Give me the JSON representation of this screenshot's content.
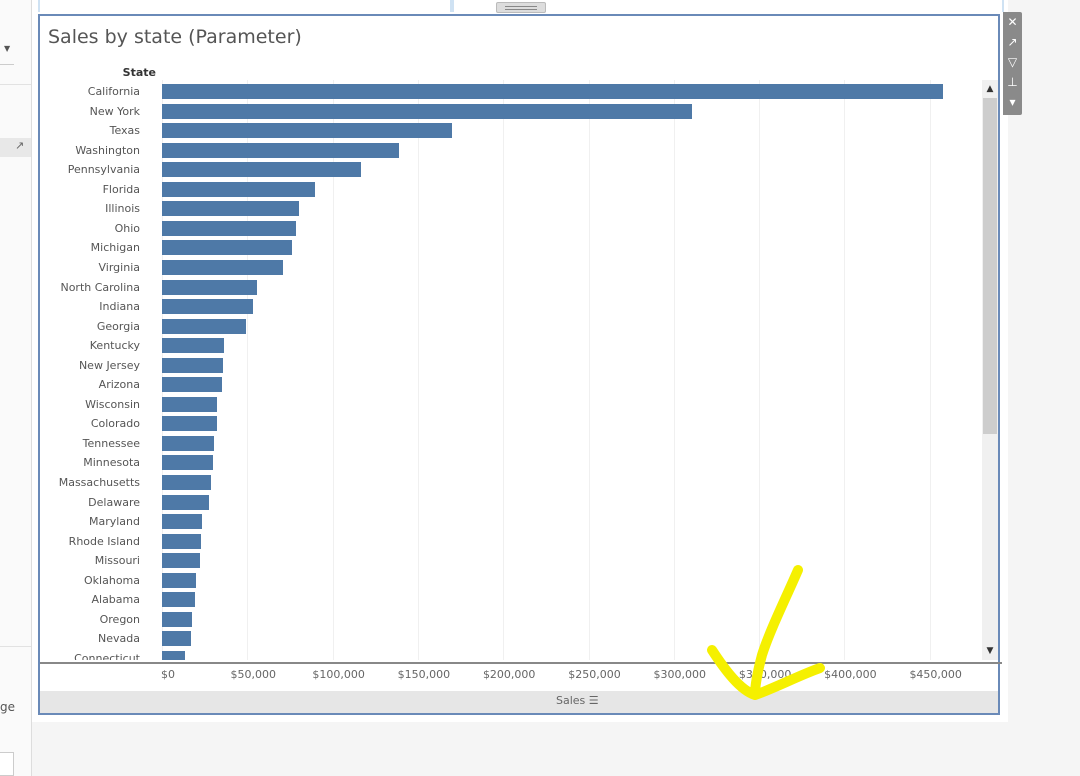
{
  "left_panel": {
    "partial_text": "ge"
  },
  "sheet": {
    "title": "Sales by state (Parameter)",
    "row_header": "State",
    "footer_label": "Sales",
    "bar_color": "#4e79a7"
  },
  "toolbar": [
    "close-icon",
    "popout-icon",
    "filter-icon",
    "pin-icon",
    "more-dropdown-icon"
  ],
  "chart_data": {
    "type": "bar",
    "orientation": "horizontal",
    "ylabel": "State",
    "xlabel": "Sales",
    "xlim": [
      0,
      475000
    ],
    "x_ticks": [
      "$0",
      "$50,000",
      "$100,000",
      "$150,000",
      "$200,000",
      "$250,000",
      "$300,000",
      "$350,000",
      "$400,000",
      "$450,000"
    ],
    "grid": true,
    "categories": [
      "California",
      "New York",
      "Texas",
      "Washington",
      "Pennsylvania",
      "Florida",
      "Illinois",
      "Ohio",
      "Michigan",
      "Virginia",
      "North Carolina",
      "Indiana",
      "Georgia",
      "Kentucky",
      "New Jersey",
      "Arizona",
      "Wisconsin",
      "Colorado",
      "Tennessee",
      "Minnesota",
      "Massachusetts",
      "Delaware",
      "Maryland",
      "Rhode Island",
      "Missouri",
      "Oklahoma",
      "Alabama",
      "Oregon",
      "Nevada",
      "Connecticut"
    ],
    "values": [
      457688,
      310876,
      170188,
      138641,
      116512,
      89474,
      80166,
      78258,
      76270,
      70637,
      55603,
      53555,
      49096,
      36592,
      35764,
      35282,
      32115,
      32108,
      30662,
      29863,
      28634,
      27451,
      23706,
      22628,
      22205,
      19683,
      19511,
      17431,
      16729,
      13384
    ]
  }
}
